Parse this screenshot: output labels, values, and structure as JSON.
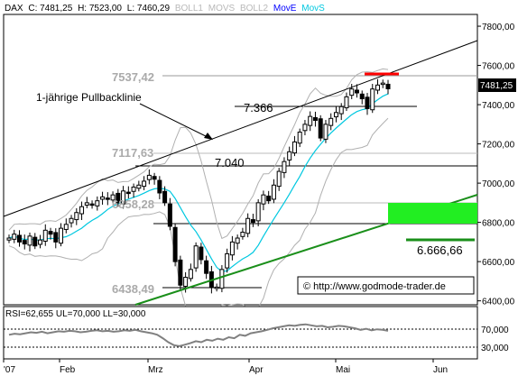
{
  "header": {
    "symbol": "DAX",
    "close_label": "C: 7481,25",
    "high_label": "H: 7523,00",
    "low_label": "L: 7460,29",
    "ind_boll1": "BOLL1",
    "ind_movs": "MOVS",
    "ind_boll2": "BOLL2",
    "ind_move": "MovE",
    "ind_movs2": "MovS"
  },
  "colors": {
    "candle_up": "#ffffff",
    "candle_down": "#000000",
    "boll": "#b0b0b0",
    "ma": "#00c8e0",
    "trend_green": "#1a8f1a",
    "target_box": "#22ee22",
    "red_resistance": "#ff0000",
    "move_label": "#0000ff",
    "movs_label": "#00c8e0",
    "boll_label": "#b8b8b8"
  },
  "annotations": {
    "pullback": "1-jährige Pullbacklinie",
    "lvl_7537": "7537,42",
    "lvl_7366": "7.366",
    "lvl_7117": "7117,63",
    "lvl_7040": "7.040",
    "lvl_6858": "6858,28",
    "lvl_6438": "6438,49",
    "lvl_6666": "6.666,66",
    "copyright": "© http://www.godmode-trader.de",
    "last_price": "7481,25"
  },
  "rsi": {
    "label": "RSI=62,655 UL=70,000 LL=30,000",
    "ticks": [
      "70,000",
      "30,000"
    ],
    "upper": 70,
    "lower": 30,
    "values": [
      55,
      57,
      56,
      58,
      60,
      59,
      61,
      58,
      60,
      62,
      61,
      63,
      62,
      60,
      61,
      63,
      64,
      62,
      63,
      61,
      62,
      64,
      63,
      65,
      62,
      60,
      58,
      55,
      48,
      40,
      34,
      32,
      35,
      38,
      42,
      40,
      45,
      43,
      47,
      45,
      50,
      48,
      55,
      53,
      58,
      60,
      62,
      65,
      68,
      70,
      72,
      74,
      73,
      75,
      76,
      74,
      72,
      73,
      70,
      71,
      73,
      72,
      70,
      68,
      65,
      67,
      64,
      66,
      65,
      63
    ]
  },
  "chart_data": {
    "type": "candlestick",
    "y_ticks": [
      "7800,00",
      "7600,00",
      "7400,00",
      "7200,00",
      "7000,00",
      "6800,00",
      "6600,00",
      "6400,00"
    ],
    "ylim": [
      6380,
      7860
    ],
    "x_labels": [
      "'07",
      "Feb",
      "Mrz",
      "Apr",
      "Mai",
      "Jun"
    ],
    "closes": [
      6720,
      6740,
      6700,
      6690,
      6730,
      6680,
      6710,
      6760,
      6740,
      6700,
      6770,
      6790,
      6820,
      6850,
      6880,
      6900,
      6890,
      6910,
      6930,
      6920,
      6940,
      6900,
      6960,
      6950,
      6980,
      6990,
      7010,
      7040,
      7020,
      6950,
      6900,
      6780,
      6600,
      6480,
      6520,
      6560,
      6680,
      6610,
      6540,
      6470,
      6470,
      6560,
      6640,
      6700,
      6720,
      6750,
      6820,
      6800,
      6900,
      6940,
      6910,
      6990,
      7060,
      7110,
      7160,
      7210,
      7260,
      7300,
      7340,
      7320,
      7230,
      7300,
      7330,
      7360,
      7390,
      7440,
      7480,
      7460,
      7430,
      7380,
      7480,
      7500,
      7510,
      7481
    ]
  }
}
